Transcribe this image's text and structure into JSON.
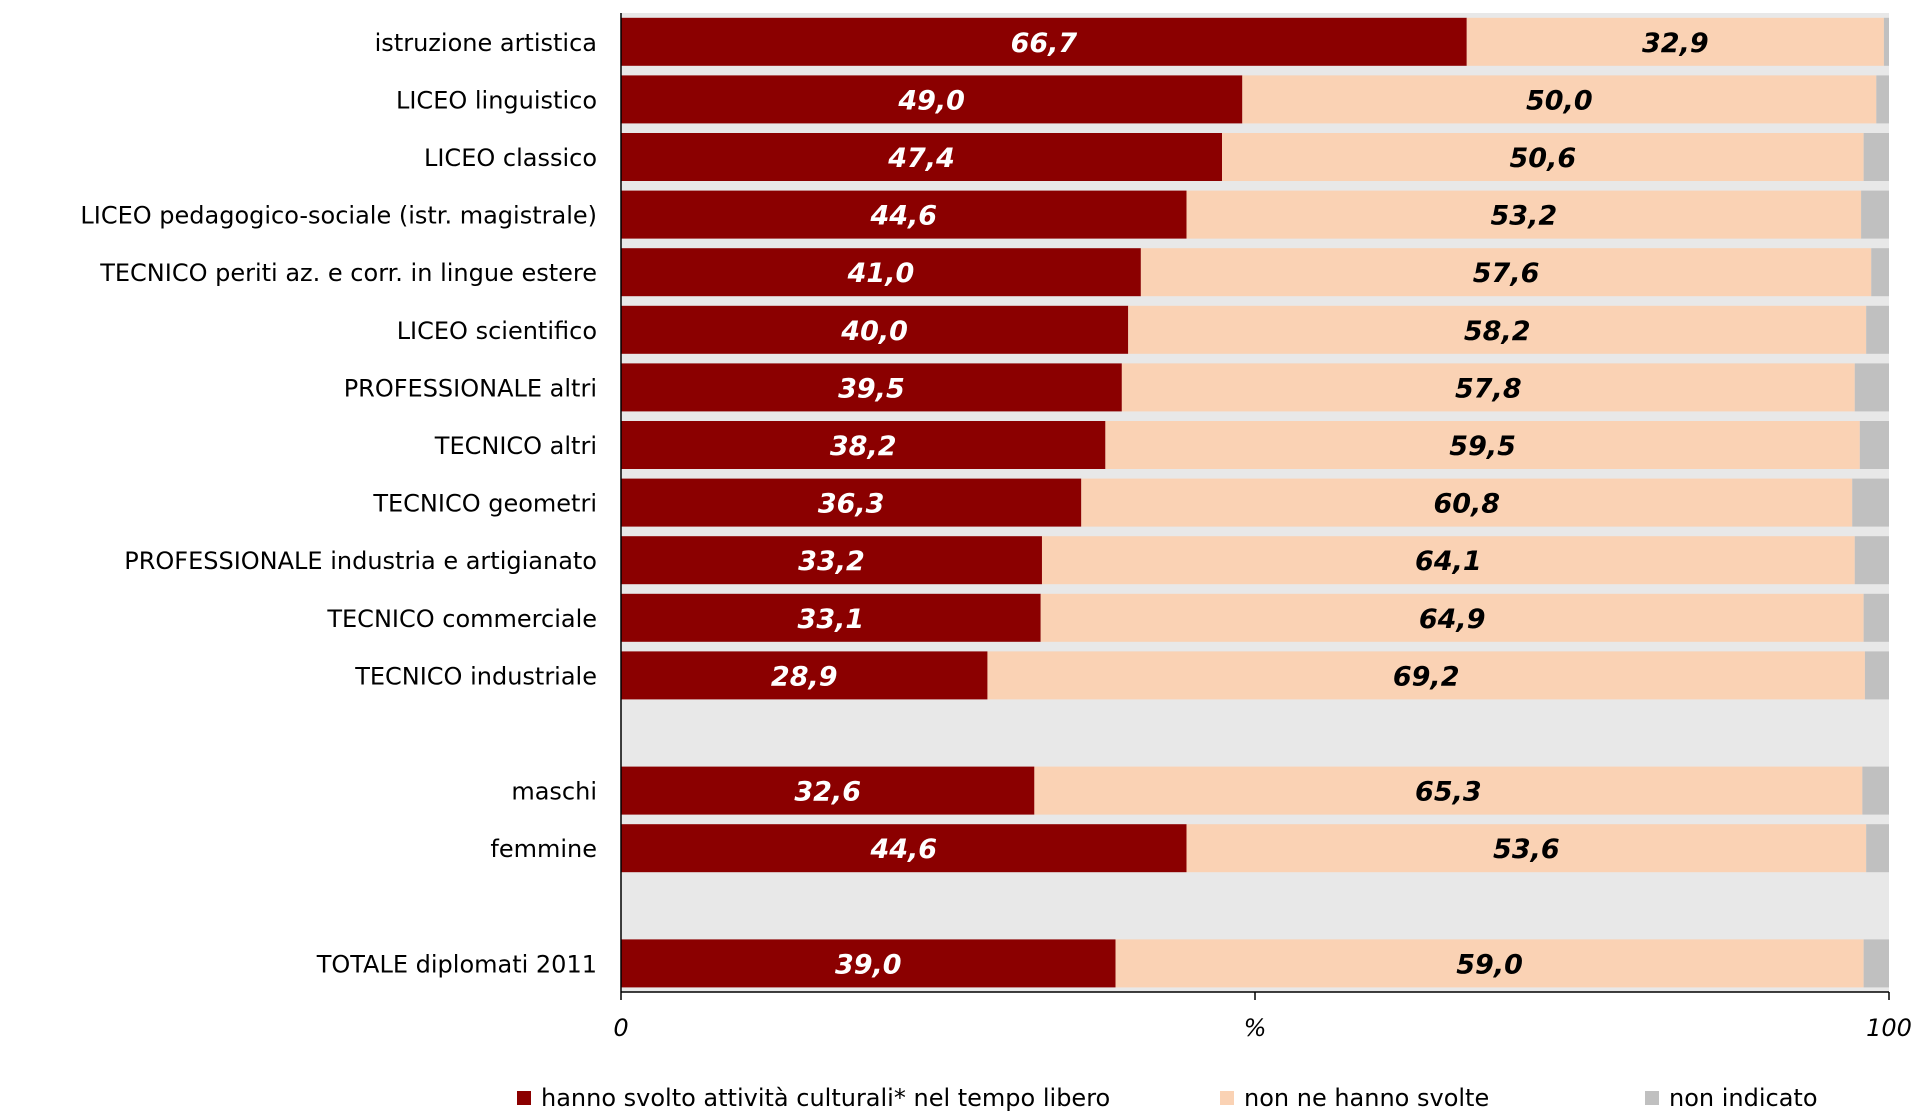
{
  "chart_data": {
    "type": "bar",
    "orientation": "horizontal",
    "stacked": true,
    "xlabel": "%",
    "xlim": [
      0,
      100
    ],
    "x_ticks": [
      "0",
      "100"
    ],
    "grid": false,
    "legend_position": "bottom",
    "rows": [
      {
        "label": "istruzione artistica",
        "values": [
          66.7,
          32.9,
          0.4
        ],
        "labels": [
          "66,7",
          "32,9",
          ""
        ]
      },
      {
        "label": "LICEO linguistico",
        "values": [
          49.0,
          50.0,
          1.0
        ],
        "labels": [
          "49,0",
          "50,0",
          ""
        ]
      },
      {
        "label": "LICEO classico",
        "values": [
          47.4,
          50.6,
          2.0
        ],
        "labels": [
          "47,4",
          "50,6",
          ""
        ]
      },
      {
        "label": "LICEO pedagogico-sociale (istr. magistrale)",
        "values": [
          44.6,
          53.2,
          2.2
        ],
        "labels": [
          "44,6",
          "53,2",
          ""
        ]
      },
      {
        "label": "TECNICO periti az. e corr. in lingue estere",
        "values": [
          41.0,
          57.6,
          1.4
        ],
        "labels": [
          "41,0",
          "57,6",
          ""
        ]
      },
      {
        "label": "LICEO scientifico",
        "values": [
          40.0,
          58.2,
          1.8
        ],
        "labels": [
          "40,0",
          "58,2",
          ""
        ]
      },
      {
        "label": "PROFESSIONALE altri",
        "values": [
          39.5,
          57.8,
          2.7
        ],
        "labels": [
          "39,5",
          "57,8",
          ""
        ]
      },
      {
        "label": "TECNICO altri",
        "values": [
          38.2,
          59.5,
          2.3
        ],
        "labels": [
          "38,2",
          "59,5",
          ""
        ]
      },
      {
        "label": "TECNICO geometri",
        "values": [
          36.3,
          60.8,
          2.9
        ],
        "labels": [
          "36,3",
          "60,8",
          ""
        ]
      },
      {
        "label": "PROFESSIONALE industria e artigianato",
        "values": [
          33.2,
          64.1,
          2.7
        ],
        "labels": [
          "33,2",
          "64,1",
          ""
        ]
      },
      {
        "label": "TECNICO commerciale",
        "values": [
          33.1,
          64.9,
          2.0
        ],
        "labels": [
          "33,1",
          "64,9",
          ""
        ]
      },
      {
        "label": "TECNICO industriale",
        "values": [
          28.9,
          69.2,
          1.9
        ],
        "labels": [
          "28,9",
          "69,2",
          ""
        ]
      },
      {
        "label": "",
        "values": [],
        "labels": []
      },
      {
        "label": "maschi",
        "values": [
          32.6,
          65.3,
          2.1
        ],
        "labels": [
          "32,6",
          "65,3",
          ""
        ]
      },
      {
        "label": "femmine",
        "values": [
          44.6,
          53.6,
          1.8
        ],
        "labels": [
          "44,6",
          "53,6",
          ""
        ]
      },
      {
        "label": "",
        "values": [],
        "labels": []
      },
      {
        "label": "TOTALE diplomati 2011",
        "values": [
          39.0,
          59.0,
          2.0
        ],
        "labels": [
          "39,0",
          "59,0",
          ""
        ]
      }
    ],
    "series": [
      {
        "name": "hanno svolto attività culturali* nel tempo libero",
        "color": "#8b0000",
        "label_color": "#ffffff"
      },
      {
        "name": "non ne hanno svolte",
        "color": "#fad2b4",
        "label_color": "#000000"
      },
      {
        "name": "non indicato",
        "color": "#c0c0c0",
        "label_color": "#000000"
      }
    ],
    "plot_background": "#e8e8e8"
  }
}
